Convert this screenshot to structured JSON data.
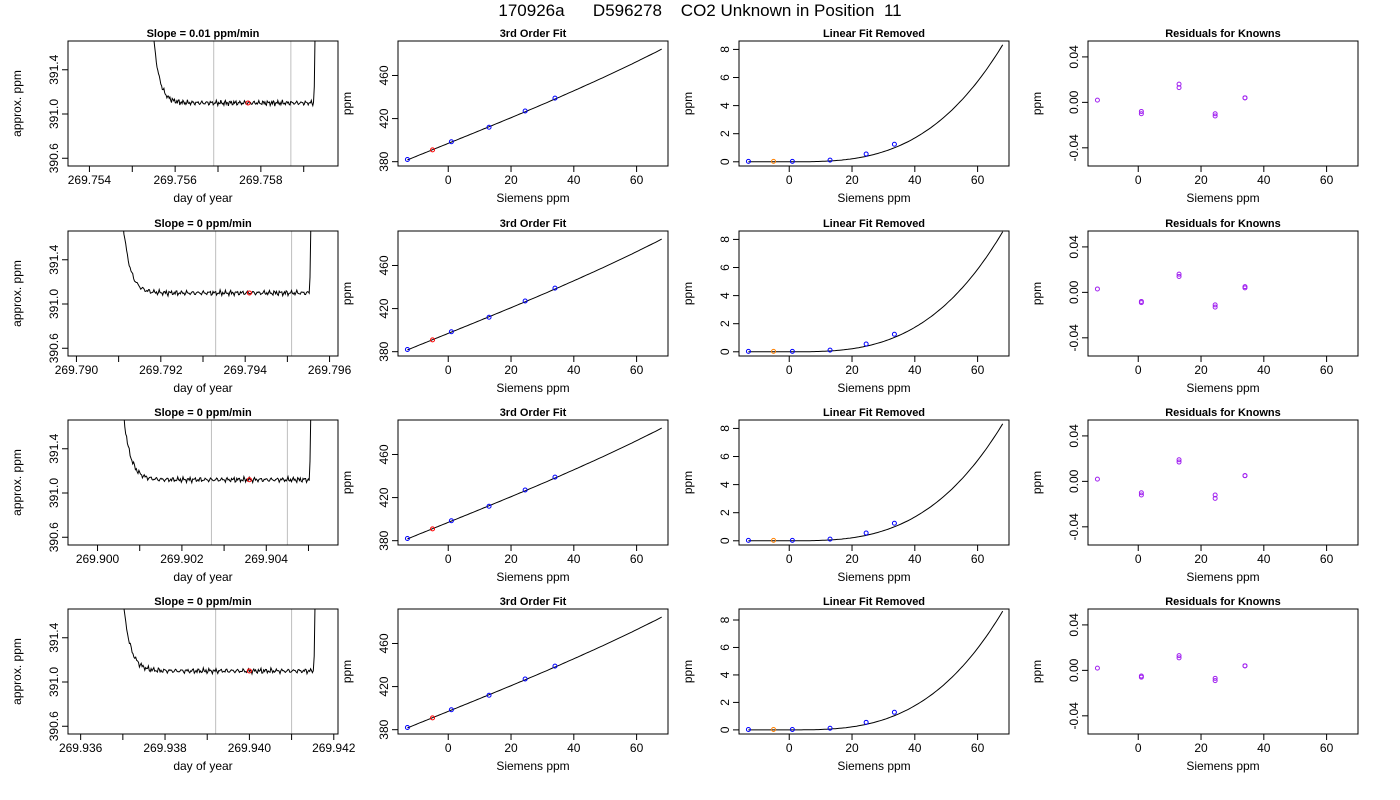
{
  "suptitle": "170926a      D596278    CO2 Unknown in Position  11",
  "colors": {
    "line": "#000000",
    "unknown_point": "#ff0000",
    "unknown_point_alt": "#ff8000",
    "known_point": "#0000ff",
    "residual_point": "#a020f0",
    "vline": "#bebebe"
  },
  "chart_data": [
    {
      "type": "line",
      "title": "Slope =  0.01  ppm/min",
      "xlabel": "day of year",
      "ylabel": "approx. ppm",
      "xlim": [
        269.7535,
        269.7598
      ],
      "ylim": [
        390.53,
        391.66
      ],
      "xticks": [
        269.754,
        269.756,
        269.758
      ],
      "xtick_decimals": 3,
      "yticks": [
        390.6,
        391.0,
        391.4
      ],
      "ytick_decimals": 1,
      "start_x": 269.7554,
      "end_x": 269.7593,
      "mid_x": 269.7577,
      "mid_y": 391.1,
      "base_y": 391.1,
      "cut_lines": [
        269.7569,
        269.7587
      ]
    },
    {
      "type": "line",
      "title": "3rd Order Fit",
      "xlabel": "Siemens ppm",
      "ylabel": "ppm",
      "xlim": [
        -16,
        70
      ],
      "ylim": [
        376,
        492
      ],
      "xticks": [
        0,
        20,
        40,
        60
      ],
      "yticks": [
        380,
        420,
        460
      ],
      "knowns": [
        [
          -13,
          382
        ],
        [
          1,
          398.5
        ],
        [
          13,
          412
        ],
        [
          24.5,
          427
        ],
        [
          34,
          439
        ]
      ],
      "unknown": [
        [
          -5,
          391
        ]
      ],
      "curve": {
        "a": 397,
        "b": 1.18,
        "c": 0.0002,
        "d": 2e-05,
        "x0": -13,
        "x1": 68
      }
    },
    {
      "type": "line",
      "title": "Linear Fit Removed",
      "xlabel": "Siemens ppm",
      "ylabel": "ppm",
      "xlim": [
        -16,
        70
      ],
      "ylim": [
        -0.3,
        8.6
      ],
      "xticks": [
        0,
        20,
        40,
        60
      ],
      "yticks": [
        0,
        2,
        4,
        6,
        8
      ],
      "knowns": [
        [
          -13,
          0.03
        ],
        [
          1,
          0.03
        ],
        [
          13,
          0.12
        ],
        [
          24.5,
          0.55
        ],
        [
          33.5,
          1.25
        ]
      ],
      "unknown": [
        [
          -5,
          0.03
        ]
      ],
      "curve": {
        "k": 2.65e-05,
        "p": 3,
        "x0": -13,
        "x1": 68
      }
    },
    {
      "type": "scatter",
      "title": "Residuals for Knowns",
      "xlabel": "Siemens ppm",
      "ylabel": "ppm",
      "xlim": [
        -16,
        70
      ],
      "ylim": [
        -0.056,
        0.054
      ],
      "xticks": [
        0,
        20,
        40,
        60
      ],
      "yticks": [
        -0.04,
        0.0,
        0.04
      ],
      "ytick_decimals": 2,
      "points": [
        [
          -13,
          0.002
        ],
        [
          1,
          -0.008
        ],
        [
          1,
          -0.01
        ],
        [
          13,
          0.016
        ],
        [
          13,
          0.013
        ],
        [
          24.5,
          -0.01
        ],
        [
          24.5,
          -0.012
        ],
        [
          34,
          0.004
        ],
        [
          34,
          0.004
        ]
      ]
    },
    {
      "type": "line",
      "title": "Slope =  0  ppm/min",
      "xlabel": "day of year",
      "ylabel": "approx. ppm",
      "xlim": [
        269.7898,
        269.7962
      ],
      "ylim": [
        390.53,
        391.66
      ],
      "xticks": [
        269.79,
        269.792,
        269.794,
        269.796
      ],
      "xtick_decimals": 3,
      "yticks": [
        390.6,
        391.0,
        391.4
      ],
      "ytick_decimals": 1,
      "start_x": 269.791,
      "end_x": 269.7956,
      "mid_x": 269.7941,
      "mid_y": 391.1,
      "base_y": 391.1,
      "cut_lines": [
        269.7933,
        269.7951
      ]
    },
    {
      "type": "line",
      "title": "3rd Order Fit",
      "xlabel": "Siemens ppm",
      "ylabel": "ppm",
      "xlim": [
        -16,
        70
      ],
      "ylim": [
        376,
        492
      ],
      "xticks": [
        0,
        20,
        40,
        60
      ],
      "yticks": [
        380,
        420,
        460
      ],
      "knowns": [
        [
          -13,
          382
        ],
        [
          1,
          398.5
        ],
        [
          13,
          412
        ],
        [
          24.5,
          427
        ],
        [
          34,
          439
        ]
      ],
      "unknown": [
        [
          -5,
          391
        ]
      ],
      "curve": {
        "a": 397,
        "b": 1.18,
        "c": 0.0002,
        "d": 2e-05,
        "x0": -13,
        "x1": 68
      }
    },
    {
      "type": "line",
      "title": "Linear Fit Removed",
      "xlabel": "Siemens ppm",
      "ylabel": "ppm",
      "xlim": [
        -16,
        70
      ],
      "ylim": [
        -0.3,
        8.6
      ],
      "xticks": [
        0,
        20,
        40,
        60
      ],
      "yticks": [
        0,
        2,
        4,
        6,
        8
      ],
      "knowns": [
        [
          -13,
          0.03
        ],
        [
          1,
          0.03
        ],
        [
          13,
          0.12
        ],
        [
          24.5,
          0.55
        ],
        [
          33.5,
          1.25
        ]
      ],
      "unknown": [
        [
          -5,
          0.03
        ]
      ],
      "curve": {
        "k": 2.72e-05,
        "p": 3,
        "x0": -13,
        "x1": 68
      }
    },
    {
      "type": "scatter",
      "title": "Residuals for Knowns",
      "xlabel": "Siemens ppm",
      "ylabel": "ppm",
      "xlim": [
        -16,
        70
      ],
      "ylim": [
        -0.056,
        0.054
      ],
      "xticks": [
        0,
        20,
        40,
        60
      ],
      "yticks": [
        -0.04,
        0.0,
        0.04
      ],
      "ytick_decimals": 2,
      "points": [
        [
          -13,
          0.003
        ],
        [
          1,
          -0.008
        ],
        [
          1,
          -0.009
        ],
        [
          13,
          0.016
        ],
        [
          13,
          0.014
        ],
        [
          24.5,
          -0.011
        ],
        [
          24.5,
          -0.013
        ],
        [
          34,
          0.004
        ],
        [
          34,
          0.005
        ]
      ]
    },
    {
      "type": "line",
      "title": "Slope =  0  ppm/min",
      "xlabel": "day of year",
      "ylabel": "approx. ppm",
      "xlim": [
        269.8993,
        269.9057
      ],
      "ylim": [
        390.53,
        391.66
      ],
      "xticks": [
        269.9,
        269.902,
        269.904
      ],
      "xtick_decimals": 3,
      "yticks": [
        390.6,
        391.0,
        391.4
      ],
      "ytick_decimals": 1,
      "start_x": 269.9005,
      "end_x": 269.9051,
      "mid_x": 269.9036,
      "mid_y": 391.12,
      "base_y": 391.12,
      "cut_lines": [
        269.9027,
        269.9045
      ]
    },
    {
      "type": "line",
      "title": "3rd Order Fit",
      "xlabel": "Siemens ppm",
      "ylabel": "ppm",
      "xlim": [
        -16,
        70
      ],
      "ylim": [
        376,
        492
      ],
      "xticks": [
        0,
        20,
        40,
        60
      ],
      "yticks": [
        380,
        420,
        460
      ],
      "knowns": [
        [
          -13,
          382
        ],
        [
          1,
          398.5
        ],
        [
          13,
          412
        ],
        [
          24.5,
          427
        ],
        [
          34,
          439
        ]
      ],
      "unknown": [
        [
          -5,
          391
        ]
      ],
      "curve": {
        "a": 397,
        "b": 1.18,
        "c": 0.0002,
        "d": 2e-05,
        "x0": -13,
        "x1": 68
      }
    },
    {
      "type": "line",
      "title": "Linear Fit Removed",
      "xlabel": "Siemens ppm",
      "ylabel": "ppm",
      "xlim": [
        -16,
        70
      ],
      "ylim": [
        -0.3,
        8.6
      ],
      "xticks": [
        0,
        20,
        40,
        60
      ],
      "yticks": [
        0,
        2,
        4,
        6,
        8
      ],
      "knowns": [
        [
          -13,
          0.03
        ],
        [
          1,
          0.03
        ],
        [
          13,
          0.12
        ],
        [
          24.5,
          0.55
        ],
        [
          33.5,
          1.25
        ]
      ],
      "unknown": [
        [
          -5,
          0.03
        ]
      ],
      "curve": {
        "k": 2.65e-05,
        "p": 3,
        "x0": -13,
        "x1": 68
      }
    },
    {
      "type": "scatter",
      "title": "Residuals for Knowns",
      "xlabel": "Siemens ppm",
      "ylabel": "ppm",
      "xlim": [
        -16,
        70
      ],
      "ylim": [
        -0.056,
        0.054
      ],
      "xticks": [
        0,
        20,
        40,
        60
      ],
      "yticks": [
        -0.04,
        0.0,
        0.04
      ],
      "ytick_decimals": 2,
      "points": [
        [
          -13,
          0.002
        ],
        [
          1,
          -0.01
        ],
        [
          1,
          -0.012
        ],
        [
          13,
          0.019
        ],
        [
          13,
          0.017
        ],
        [
          24.5,
          -0.012
        ],
        [
          24.5,
          -0.015
        ],
        [
          34,
          0.005
        ],
        [
          34,
          0.005
        ]
      ]
    },
    {
      "type": "line",
      "title": "Slope =  0  ppm/min",
      "xlabel": "day of year",
      "ylabel": "approx. ppm",
      "xlim": [
        269.9357,
        269.9421
      ],
      "ylim": [
        390.53,
        391.66
      ],
      "xticks": [
        269.936,
        269.938,
        269.94,
        269.942
      ],
      "xtick_decimals": 3,
      "yticks": [
        390.6,
        391.0,
        391.4
      ],
      "ytick_decimals": 1,
      "start_x": 269.9369,
      "end_x": 269.9416,
      "mid_x": 269.94,
      "mid_y": 391.1,
      "base_y": 391.1,
      "cut_lines": [
        269.9392,
        269.941
      ]
    },
    {
      "type": "line",
      "title": "3rd Order Fit",
      "xlabel": "Siemens ppm",
      "ylabel": "ppm",
      "xlim": [
        -16,
        70
      ],
      "ylim": [
        376,
        492
      ],
      "xticks": [
        0,
        20,
        40,
        60
      ],
      "yticks": [
        380,
        420,
        460
      ],
      "knowns": [
        [
          -13,
          382
        ],
        [
          1,
          398.5
        ],
        [
          13,
          412
        ],
        [
          24.5,
          427
        ],
        [
          34,
          439
        ]
      ],
      "unknown": [
        [
          -5,
          391
        ]
      ],
      "curve": {
        "a": 397,
        "b": 1.18,
        "c": 0.0002,
        "d": 2e-05,
        "x0": -13,
        "x1": 68
      }
    },
    {
      "type": "line",
      "title": "Linear Fit Removed",
      "xlabel": "Siemens ppm",
      "ylabel": "ppm",
      "xlim": [
        -16,
        70
      ],
      "ylim": [
        -0.3,
        8.8
      ],
      "xticks": [
        0,
        20,
        40,
        60
      ],
      "yticks": [
        0,
        2,
        4,
        6,
        8
      ],
      "knowns": [
        [
          -13,
          0.03
        ],
        [
          1,
          0.03
        ],
        [
          13,
          0.12
        ],
        [
          24.5,
          0.55
        ],
        [
          33.5,
          1.28
        ]
      ],
      "unknown": [
        [
          -5,
          0.03
        ]
      ],
      "curve": {
        "k": 2.75e-05,
        "p": 3,
        "x0": -13,
        "x1": 68
      }
    },
    {
      "type": "scatter",
      "title": "Residuals for Knowns",
      "xlabel": "Siemens ppm",
      "ylabel": "ppm",
      "xlim": [
        -16,
        70
      ],
      "ylim": [
        -0.056,
        0.054
      ],
      "xticks": [
        0,
        20,
        40,
        60
      ],
      "yticks": [
        -0.04,
        0.0,
        0.04
      ],
      "ytick_decimals": 2,
      "points": [
        [
          -13,
          0.002
        ],
        [
          1,
          -0.005
        ],
        [
          1,
          -0.006
        ],
        [
          13,
          0.013
        ],
        [
          13,
          0.011
        ],
        [
          24.5,
          -0.007
        ],
        [
          24.5,
          -0.009
        ],
        [
          34,
          0.004
        ],
        [
          34,
          0.004
        ]
      ]
    }
  ]
}
